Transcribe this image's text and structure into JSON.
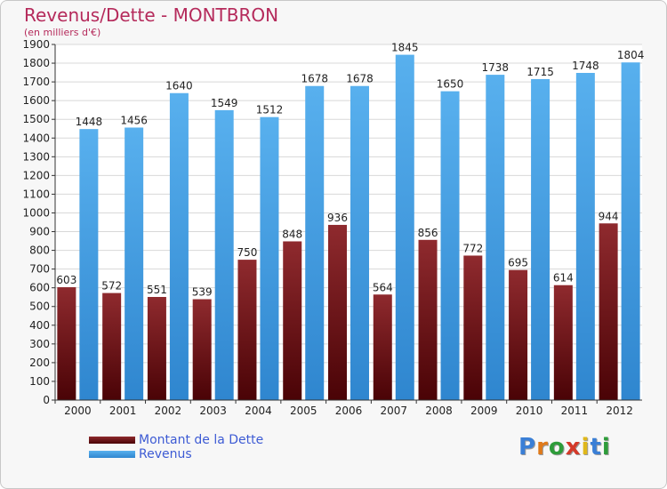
{
  "header": {
    "title": "Revenus/Dette - MONTBRON",
    "subtitle": "(en milliers d'€)"
  },
  "legend": {
    "items": [
      {
        "label": "Montant de la Dette",
        "color": "#6b0a0f"
      },
      {
        "label": "Revenus",
        "color": "#3f9ee6"
      }
    ]
  },
  "logo": {
    "text": "Proxiti",
    "letter_colors": [
      "#3a7fd6",
      "#e07a1a",
      "#2e9c3a",
      "#d43a2a",
      "#e0b81a",
      "#3a7fd6",
      "#2e9c3a"
    ]
  },
  "chart_data": {
    "type": "bar",
    "title": "Revenus/Dette - MONTBRON",
    "subtitle": "(en milliers d'€)",
    "categories": [
      "2000",
      "2001",
      "2002",
      "2003",
      "2004",
      "2005",
      "2006",
      "2007",
      "2008",
      "2009",
      "2010",
      "2011",
      "2012"
    ],
    "series": [
      {
        "name": "Montant de la Dette",
        "color": "#6b0a0f",
        "values": [
          603,
          572,
          551,
          539,
          750,
          848,
          936,
          564,
          856,
          772,
          695,
          614,
          944
        ]
      },
      {
        "name": "Revenus",
        "color": "#3f9ee6",
        "values": [
          1448,
          1456,
          1640,
          1549,
          1512,
          1678,
          1678,
          1845,
          1650,
          1738,
          1715,
          1748,
          1804
        ]
      }
    ],
    "yticks": [
      0,
      100,
      200,
      300,
      400,
      500,
      600,
      700,
      800,
      900,
      1000,
      1100,
      1200,
      1300,
      1400,
      1500,
      1600,
      1700,
      1800,
      1900
    ],
    "ylim": [
      0,
      1900
    ],
    "grid": true,
    "legend_position": "bottom-left"
  }
}
